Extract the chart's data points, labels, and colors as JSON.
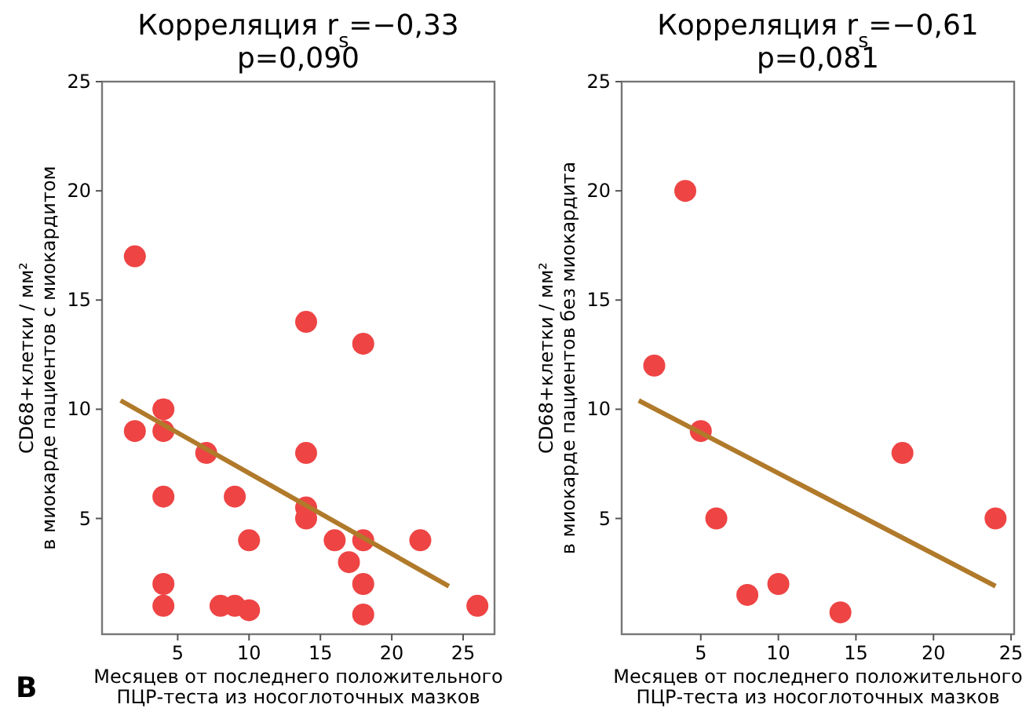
{
  "chart_data": [
    {
      "type": "scatter",
      "title": "Корреляция r$_{s}$=−0,33",
      "subtitle": "p=0,090",
      "xlabel": "Месяцев от последнего положительного\nПЦР-теста из носоглоточных мазков",
      "ylabel": "CD68+клетки / мм²\nв миокарде пациентов с миокардитом",
      "annotations": [
        "B"
      ],
      "xlim": [
        -0.3,
        27.2
      ],
      "ylim": [
        -0.3,
        25
      ],
      "xticks": [
        5,
        10,
        15,
        20,
        25
      ],
      "yticks": [
        5,
        10,
        15,
        20,
        25
      ],
      "grid": false,
      "series": [
        {
          "type": "scatter",
          "marker": "circle",
          "color": "#ee4444",
          "x": [
            2,
            2,
            4,
            4,
            4,
            4,
            4,
            7,
            8,
            9,
            9,
            10,
            10,
            14,
            14,
            14,
            14,
            16,
            17,
            18,
            18,
            18,
            18,
            22,
            26
          ],
          "values": [
            17,
            9,
            10,
            9,
            6,
            2,
            1,
            8,
            1,
            1,
            6,
            0.8,
            4,
            14,
            8,
            5.5,
            5,
            4,
            3,
            13,
            4,
            2,
            0.6,
            4,
            1
          ]
        },
        {
          "type": "line",
          "color": "#b07a2a",
          "x": [
            1,
            24
          ],
          "values": [
            10.4,
            1.9
          ]
        }
      ]
    },
    {
      "type": "scatter",
      "title": "Корреляция r$_{s}$=−0,61",
      "subtitle": "p=0,081",
      "xlabel": "Месяцев от последнего положительного\nПЦР-теста из носоглоточных мазков",
      "ylabel": "CD68+клетки / мм²\nв миокарде пациентов без миокардита",
      "xlim": [
        -0.1,
        25.2
      ],
      "ylim": [
        -0.3,
        25
      ],
      "xticks": [
        5,
        10,
        15,
        20,
        25
      ],
      "yticks": [
        5,
        10,
        15,
        20,
        25
      ],
      "grid": false,
      "series": [
        {
          "type": "scatter",
          "marker": "circle",
          "color": "#ee4444",
          "x": [
            2,
            4,
            5,
            6,
            8,
            10,
            14,
            18,
            24
          ],
          "values": [
            12,
            20,
            9,
            5,
            1.5,
            2,
            0.7,
            8,
            5
          ]
        },
        {
          "type": "line",
          "color": "#b07a2a",
          "x": [
            1,
            24
          ],
          "values": [
            10.4,
            1.9
          ]
        }
      ]
    }
  ]
}
